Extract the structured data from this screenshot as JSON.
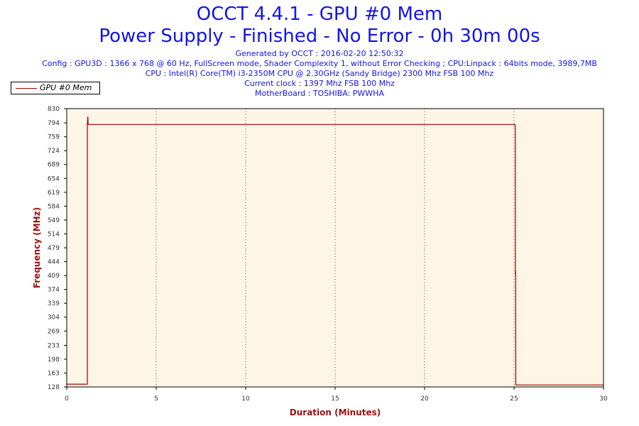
{
  "header": {
    "title_line1": "OCCT 4.4.1 - GPU #0 Mem",
    "title_line2": "Power Supply - Finished - No Error - 0h 30m 00s",
    "generated": "Generated by OCCT : 2016-02-20 12:50:32",
    "config": "Config : GPU3D : 1366 x 768 @ 60 Hz, FullScreen mode, Shader Complexity 1, without Error Checking ; CPU:Linpack : 64bits mode, 3989,7MB",
    "cpu": "CPU : Intel(R) Core(TM) i3-2350M CPU @ 2.30GHz (Sandy Bridge) 2300 Mhz FSB 100 Mhz",
    "clock": "Current clock : 1397 Mhz FSB 100 Mhz",
    "motherboard": "MotherBoard : TOSHIBA: PWWHA"
  },
  "colors": {
    "title": "#1414e6",
    "series": "#a00000",
    "plot_background": "#fdf5e6",
    "axis_label": "#a01010"
  },
  "chart_data": {
    "type": "line",
    "xlabel": "Duration (Minutes)",
    "ylabel": "Frequency (MHz)",
    "xlim": [
      0,
      30
    ],
    "ylim": [
      128,
      830
    ],
    "x_ticks": [
      0,
      5,
      10,
      15,
      20,
      25,
      30
    ],
    "y_ticks": [
      128,
      163,
      198,
      233,
      269,
      304,
      339,
      374,
      409,
      444,
      479,
      514,
      549,
      584,
      619,
      654,
      689,
      724,
      759,
      794,
      830
    ],
    "grid": "vertical dotted",
    "legend_position": "top-left",
    "series": [
      {
        "name": "GPU #0 Mem",
        "x": [
          0,
          1.15,
          1.15,
          1.18,
          1.2,
          25.05,
          25.07,
          25.08,
          25.09,
          25.1,
          30
        ],
        "y": [
          135,
          135,
          790,
          810,
          790,
          790,
          780,
          409,
          420,
          133,
          133
        ]
      }
    ]
  }
}
